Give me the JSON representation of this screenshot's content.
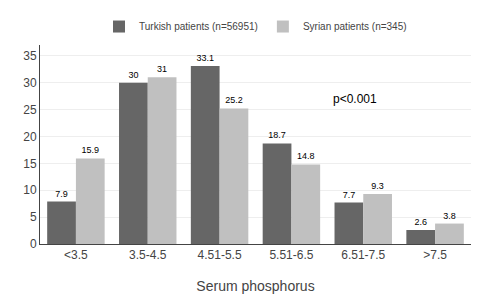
{
  "chart_data": {
    "type": "bar",
    "categories": [
      "<3.5",
      "3.5-4.5",
      "4.51-5.5",
      "5.51-6.5",
      "6.51-7.5",
      ">7.5"
    ],
    "series": [
      {
        "name": "Turkish patients (n=56951)",
        "color": "#666666",
        "values": [
          7.9,
          30,
          33.1,
          18.7,
          7.7,
          2.6
        ]
      },
      {
        "name": "Syrian patients (n=345)",
        "color": "#c0c0c0",
        "values": [
          15.9,
          31,
          25.2,
          14.8,
          9.3,
          3.8
        ]
      }
    ],
    "xlabel": "Serum phosphorus",
    "ylim": [
      0,
      37
    ],
    "yticks": [
      0,
      5,
      10,
      15,
      20,
      25,
      30,
      35
    ],
    "grid": true,
    "legend": "top",
    "data_labels": true,
    "annotation": "p<0.001"
  }
}
